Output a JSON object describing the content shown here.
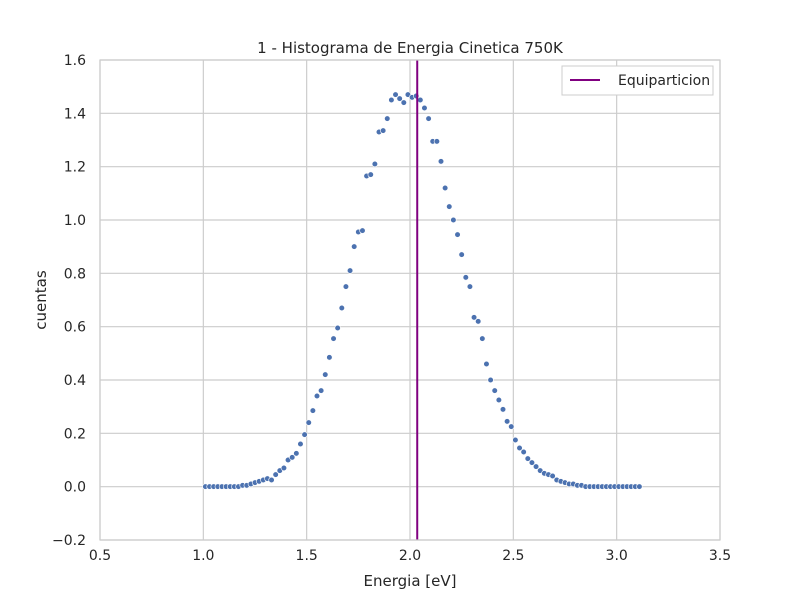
{
  "chart_data": {
    "type": "scatter",
    "title": "1 - Histograma de Energia Cinetica 750K",
    "xlabel": "Energia [eV]",
    "ylabel": "cuentas",
    "xlim": [
      0.5,
      3.5
    ],
    "ylim": [
      -0.2,
      1.6
    ],
    "xticks": [
      "0.5",
      "1.0",
      "1.5",
      "2.0",
      "2.5",
      "3.0",
      "3.5"
    ],
    "yticks": [
      "−0.2",
      "0.0",
      "0.2",
      "0.4",
      "0.6",
      "0.8",
      "1.0",
      "1.2",
      "1.4",
      "1.6"
    ],
    "grid": true,
    "legend_position": "top-right",
    "series": [
      {
        "kind": "scatter",
        "color": "#4c72b0",
        "points": [
          [
            1.01,
            0.0
          ],
          [
            1.03,
            0.0
          ],
          [
            1.05,
            0.0
          ],
          [
            1.07,
            0.0
          ],
          [
            1.09,
            0.0
          ],
          [
            1.11,
            0.0
          ],
          [
            1.13,
            0.0
          ],
          [
            1.15,
            0.0
          ],
          [
            1.17,
            0.0
          ],
          [
            1.19,
            0.005
          ],
          [
            1.21,
            0.005
          ],
          [
            1.23,
            0.01
          ],
          [
            1.25,
            0.015
          ],
          [
            1.27,
            0.02
          ],
          [
            1.29,
            0.025
          ],
          [
            1.31,
            0.03
          ],
          [
            1.33,
            0.025
          ],
          [
            1.35,
            0.045
          ],
          [
            1.37,
            0.06
          ],
          [
            1.39,
            0.07
          ],
          [
            1.41,
            0.1
          ],
          [
            1.43,
            0.11
          ],
          [
            1.45,
            0.125
          ],
          [
            1.47,
            0.16
          ],
          [
            1.49,
            0.195
          ],
          [
            1.51,
            0.24
          ],
          [
            1.53,
            0.285
          ],
          [
            1.55,
            0.34
          ],
          [
            1.57,
            0.36
          ],
          [
            1.59,
            0.42
          ],
          [
            1.61,
            0.485
          ],
          [
            1.63,
            0.555
          ],
          [
            1.65,
            0.595
          ],
          [
            1.67,
            0.67
          ],
          [
            1.69,
            0.75
          ],
          [
            1.71,
            0.81
          ],
          [
            1.73,
            0.9
          ],
          [
            1.75,
            0.955
          ],
          [
            1.77,
            0.96
          ],
          [
            1.79,
            1.165
          ],
          [
            1.81,
            1.17
          ],
          [
            1.83,
            1.21
          ],
          [
            1.85,
            1.33
          ],
          [
            1.87,
            1.335
          ],
          [
            1.89,
            1.38
          ],
          [
            1.91,
            1.45
          ],
          [
            1.93,
            1.47
          ],
          [
            1.95,
            1.455
          ],
          [
            1.97,
            1.44
          ],
          [
            1.99,
            1.47
          ],
          [
            2.01,
            1.46
          ],
          [
            2.03,
            1.465
          ],
          [
            2.05,
            1.45
          ],
          [
            2.07,
            1.42
          ],
          [
            2.09,
            1.38
          ],
          [
            2.11,
            1.295
          ],
          [
            2.13,
            1.295
          ],
          [
            2.15,
            1.22
          ],
          [
            2.17,
            1.12
          ],
          [
            2.19,
            1.05
          ],
          [
            2.21,
            1.0
          ],
          [
            2.23,
            0.945
          ],
          [
            2.25,
            0.87
          ],
          [
            2.27,
            0.785
          ],
          [
            2.29,
            0.75
          ],
          [
            2.31,
            0.635
          ],
          [
            2.33,
            0.62
          ],
          [
            2.35,
            0.555
          ],
          [
            2.37,
            0.46
          ],
          [
            2.39,
            0.4
          ],
          [
            2.41,
            0.36
          ],
          [
            2.43,
            0.325
          ],
          [
            2.45,
            0.29
          ],
          [
            2.47,
            0.245
          ],
          [
            2.49,
            0.225
          ],
          [
            2.51,
            0.175
          ],
          [
            2.53,
            0.145
          ],
          [
            2.55,
            0.13
          ],
          [
            2.57,
            0.105
          ],
          [
            2.59,
            0.09
          ],
          [
            2.61,
            0.075
          ],
          [
            2.63,
            0.06
          ],
          [
            2.65,
            0.05
          ],
          [
            2.67,
            0.045
          ],
          [
            2.69,
            0.04
          ],
          [
            2.71,
            0.025
          ],
          [
            2.73,
            0.02
          ],
          [
            2.75,
            0.015
          ],
          [
            2.77,
            0.01
          ],
          [
            2.79,
            0.01
          ],
          [
            2.81,
            0.005
          ],
          [
            2.83,
            0.005
          ],
          [
            2.85,
            0.0
          ],
          [
            2.87,
            0.0
          ],
          [
            2.89,
            0.0
          ],
          [
            2.91,
            0.0
          ],
          [
            2.93,
            0.0
          ],
          [
            2.95,
            0.0
          ],
          [
            2.97,
            0.0
          ],
          [
            2.99,
            0.0
          ],
          [
            3.01,
            0.0
          ],
          [
            3.03,
            0.0
          ],
          [
            3.05,
            0.0
          ],
          [
            3.07,
            0.0
          ],
          [
            3.09,
            0.0
          ],
          [
            3.11,
            0.0
          ]
        ]
      },
      {
        "name": "Equiparticion",
        "kind": "vline",
        "x": 2.035,
        "color": "#800080"
      }
    ]
  }
}
